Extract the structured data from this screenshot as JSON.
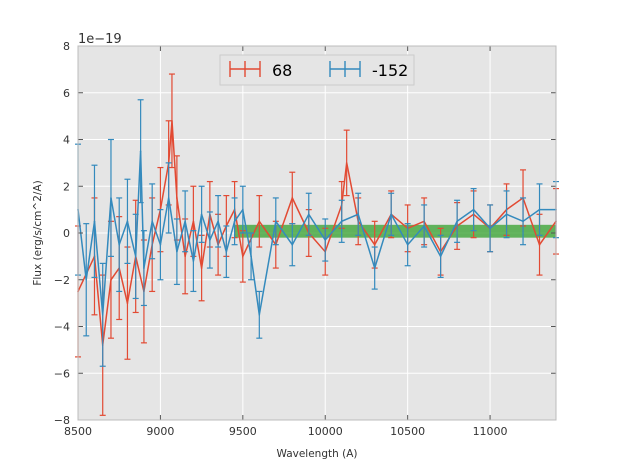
{
  "chart_data": {
    "type": "line",
    "title": "",
    "xlabel": "Wavelength (A)",
    "ylabel": "Flux (erg/s/cm^2/A)",
    "y_offset_label": "1e−19",
    "xlim": [
      8500,
      11400
    ],
    "ylim": [
      -8,
      8
    ],
    "x_ticks": [
      8500,
      9000,
      9500,
      10000,
      10500,
      11000
    ],
    "x_tick_labels": [
      "8500",
      "9000",
      "9500",
      "10000",
      "10500",
      "11000"
    ],
    "y_ticks": [
      -8,
      -6,
      -4,
      -2,
      0,
      2,
      4,
      6,
      8
    ],
    "y_tick_labels": [
      "−8",
      "−6",
      "−4",
      "−2",
      "0",
      "2",
      "4",
      "6",
      "8"
    ],
    "grid": true,
    "legend_position": "top-center",
    "band": {
      "x_start": 9450,
      "x_end": 11400,
      "y_low": -0.2,
      "y_high": 0.35,
      "color": "#33a02c"
    },
    "series": [
      {
        "name": "68",
        "color": "#e24a33",
        "x": [
          8500,
          8600,
          8650,
          8700,
          8750,
          8800,
          8850,
          8900,
          8950,
          9000,
          9050,
          9070,
          9100,
          9150,
          9200,
          9250,
          9300,
          9350,
          9400,
          9450,
          9500,
          9600,
          9700,
          9800,
          9900,
          10000,
          10100,
          10130,
          10200,
          10300,
          10400,
          10500,
          10600,
          10700,
          10800,
          10900,
          11000,
          11100,
          11200,
          11300,
          11400
        ],
        "y": [
          -2.5,
          -1.0,
          -4.8,
          -2.0,
          -1.5,
          -3.0,
          -1.0,
          -2.5,
          -0.5,
          1.0,
          3.0,
          4.8,
          1.5,
          -1.0,
          0.5,
          -1.5,
          0.8,
          -0.5,
          0.3,
          1.0,
          -1.0,
          0.5,
          -0.5,
          1.5,
          0.0,
          -0.8,
          1.2,
          3.0,
          0.5,
          -0.5,
          0.8,
          0.2,
          0.5,
          -0.8,
          0.3,
          0.8,
          0.2,
          1.0,
          1.5,
          -0.5,
          0.5
        ],
        "err": [
          2.8,
          2.5,
          3.0,
          2.5,
          2.2,
          2.4,
          2.4,
          2.2,
          2.0,
          1.8,
          1.8,
          2.0,
          1.8,
          1.6,
          1.5,
          1.4,
          1.4,
          1.3,
          1.3,
          1.2,
          1.1,
          1.1,
          1.0,
          1.1,
          1.0,
          1.0,
          1.0,
          1.4,
          1.0,
          1.0,
          1.0,
          1.0,
          1.0,
          1.0,
          1.0,
          1.0,
          1.0,
          1.1,
          1.2,
          1.3,
          1.4
        ]
      },
      {
        "name": "-152",
        "color": "#348abd",
        "x": [
          8500,
          8550,
          8600,
          8650,
          8700,
          8750,
          8800,
          8850,
          8880,
          8900,
          8950,
          9000,
          9050,
          9100,
          9150,
          9200,
          9250,
          9300,
          9350,
          9400,
          9450,
          9500,
          9550,
          9600,
          9700,
          9800,
          9900,
          10000,
          10100,
          10200,
          10300,
          10400,
          10500,
          10600,
          10700,
          10800,
          10900,
          11000,
          11100,
          11200,
          11300,
          11400
        ],
        "y": [
          1.0,
          -2.0,
          0.5,
          -3.5,
          1.5,
          -0.5,
          0.5,
          -1.0,
          3.5,
          -1.5,
          0.5,
          -0.5,
          1.5,
          -0.8,
          0.5,
          -1.2,
          0.8,
          -0.3,
          0.5,
          -0.8,
          0.5,
          1.0,
          -1.0,
          -3.5,
          0.5,
          -0.5,
          0.8,
          -0.3,
          0.5,
          0.8,
          -1.5,
          0.8,
          -0.5,
          0.3,
          -1.0,
          0.5,
          1.0,
          0.2,
          0.8,
          0.5,
          1.0,
          1.0
        ],
        "err": [
          2.8,
          2.4,
          2.4,
          2.2,
          2.5,
          2.0,
          1.8,
          1.8,
          2.2,
          1.6,
          1.6,
          1.5,
          1.5,
          1.4,
          1.3,
          1.3,
          1.2,
          1.2,
          1.1,
          1.1,
          1.0,
          1.0,
          1.0,
          1.0,
          1.0,
          0.9,
          0.9,
          0.9,
          0.9,
          0.9,
          0.9,
          0.9,
          0.9,
          0.9,
          0.9,
          0.9,
          0.9,
          1.0,
          1.0,
          1.0,
          1.1,
          1.2
        ]
      }
    ]
  }
}
